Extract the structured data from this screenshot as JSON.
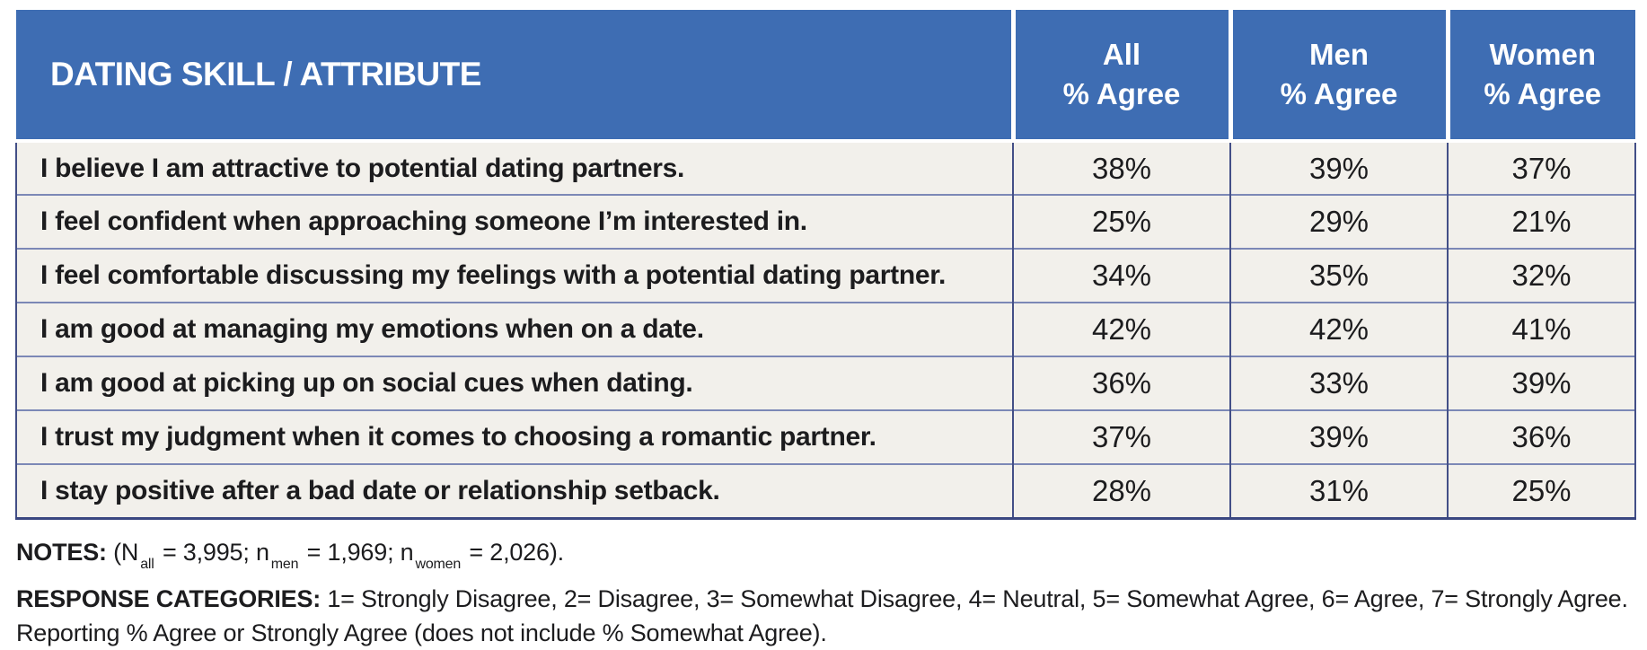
{
  "colors": {
    "header_blue": "#3e6db3",
    "row_background": "#f2f0eb",
    "grid_vertical_navy": "#434f87",
    "grid_horizontal_navy": "#7c88b6",
    "header_text": "#ffffff",
    "body_text": "#1c1c1e"
  },
  "chart_data": {
    "type": "table",
    "title": "DATING SKILL / ATTRIBUTE",
    "columns": [
      {
        "id": "attribute",
        "label": "DATING SKILL / ATTRIBUTE"
      },
      {
        "id": "all",
        "label_line1": "All",
        "label_line2": "% Agree"
      },
      {
        "id": "men",
        "label_line1": "Men",
        "label_line2": "% Agree"
      },
      {
        "id": "women",
        "label_line1": "Women",
        "label_line2": "% Agree"
      }
    ],
    "rows": [
      {
        "attribute": "I believe I am attractive to potential dating partners.",
        "all": "38%",
        "men": "39%",
        "women": "37%"
      },
      {
        "attribute": "I feel confident when approaching someone I’m interested in.",
        "all": "25%",
        "men": "29%",
        "women": "21%"
      },
      {
        "attribute": "I feel comfortable discussing my feelings with a potential dating partner.",
        "all": "34%",
        "men": "35%",
        "women": "32%"
      },
      {
        "attribute": "I am good at managing my emotions when on a date.",
        "all": "42%",
        "men": "42%",
        "women": "41%"
      },
      {
        "attribute": "I am good at picking up on social cues when dating.",
        "all": "36%",
        "men": "33%",
        "women": "39%"
      },
      {
        "attribute": "I trust my judgment when it comes to choosing a romantic partner.",
        "all": "37%",
        "men": "39%",
        "women": "36%"
      },
      {
        "attribute": "I stay positive after a bad date or relationship setback.",
        "all": "28%",
        "men": "31%",
        "women": "25%"
      }
    ],
    "values_numeric": {
      "all": [
        38,
        25,
        34,
        42,
        36,
        37,
        28
      ],
      "men": [
        39,
        29,
        35,
        42,
        33,
        39,
        31
      ],
      "women": [
        37,
        21,
        32,
        41,
        39,
        36,
        25
      ]
    }
  },
  "notes": {
    "label": "NOTES:",
    "seg1": "(N",
    "sub1": "all",
    "seg2": " = 3,995; n",
    "sub2": "men",
    "seg3": " = 1,969; n",
    "sub3": "women",
    "seg4": " = 2,026)."
  },
  "response_categories": {
    "label": "RESPONSE CATEGORIES:",
    "line1": " 1= Strongly Disagree, 2= Disagree, 3= Somewhat Disagree, 4= Neutral, 5= Somewhat Agree, 6= Agree, 7= Strongly Agree.",
    "line2": "Reporting % Agree or Strongly Agree (does not include % Somewhat Agree)."
  }
}
